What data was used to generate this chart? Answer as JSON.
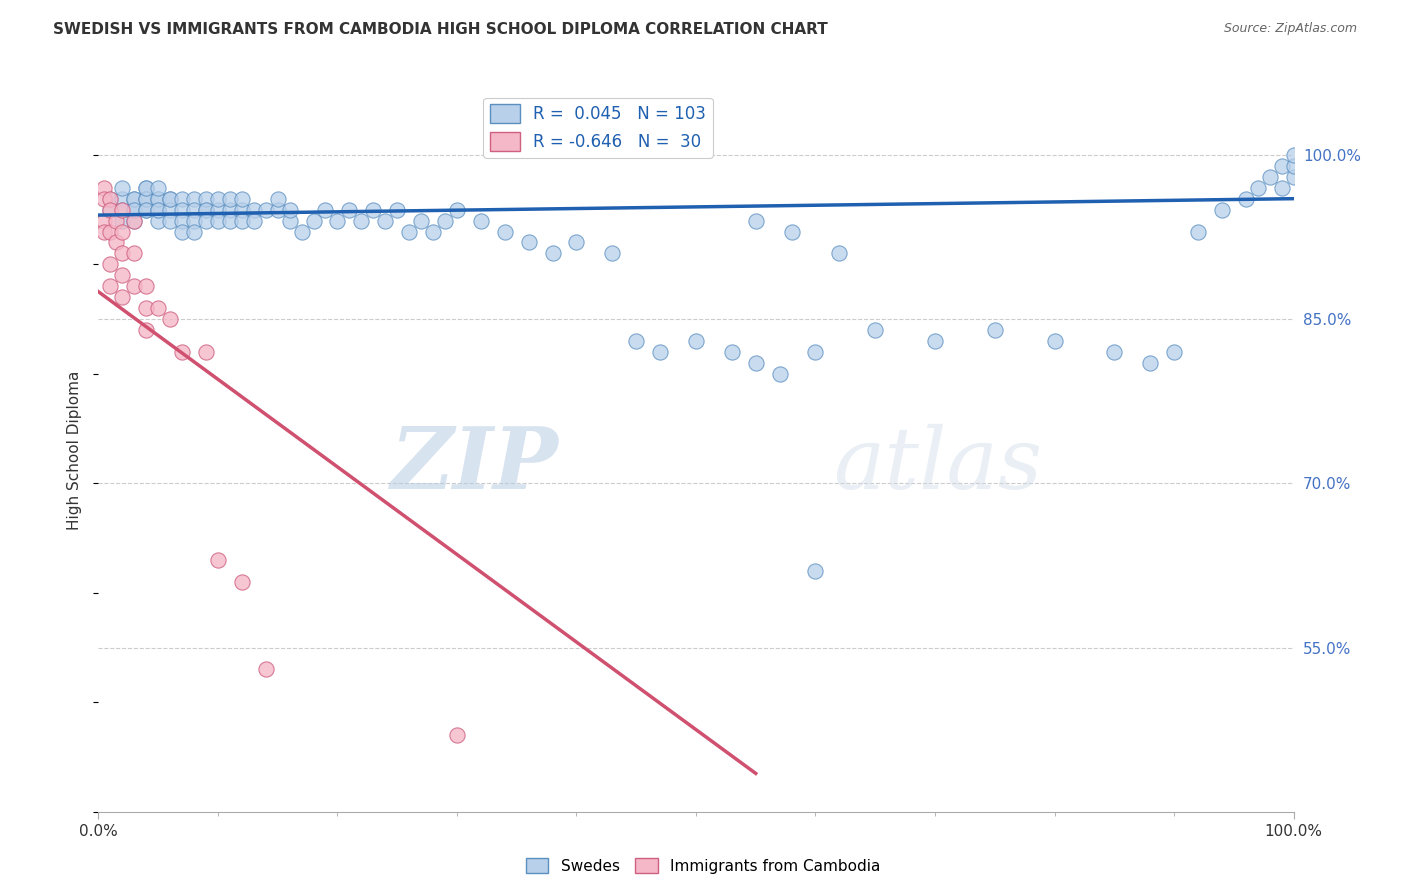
{
  "title": "SWEDISH VS IMMIGRANTS FROM CAMBODIA HIGH SCHOOL DIPLOMA CORRELATION CHART",
  "source": "Source: ZipAtlas.com",
  "ylabel": "High School Diploma",
  "xlim": [
    0.0,
    1.0
  ],
  "ylim": [
    0.4,
    1.06
  ],
  "right_yticks": [
    1.0,
    0.85,
    0.7,
    0.55
  ],
  "right_yticklabels": [
    "100.0%",
    "85.0%",
    "70.0%",
    "55.0%"
  ],
  "blue_R": 0.045,
  "blue_N": 103,
  "pink_R": -0.646,
  "pink_N": 30,
  "blue_color": "#b8d0ea",
  "pink_color": "#f5b8c8",
  "blue_edge_color": "#5a8fc0",
  "pink_edge_color": "#d06080",
  "blue_line_color": "#2060b0",
  "pink_line_color": "#d05070",
  "watermark_zip": "ZIP",
  "watermark_atlas": "atlas",
  "legend_swedes": "Swedes",
  "legend_cambodia": "Immigrants from Cambodia",
  "blue_scatter_x": [
    0.01,
    0.01,
    0.02,
    0.02,
    0.02,
    0.02,
    0.03,
    0.03,
    0.03,
    0.03,
    0.03,
    0.04,
    0.04,
    0.04,
    0.04,
    0.04,
    0.04,
    0.05,
    0.05,
    0.05,
    0.05,
    0.05,
    0.05,
    0.06,
    0.06,
    0.06,
    0.06,
    0.07,
    0.07,
    0.07,
    0.07,
    0.08,
    0.08,
    0.08,
    0.08,
    0.09,
    0.09,
    0.09,
    0.09,
    0.1,
    0.1,
    0.1,
    0.11,
    0.11,
    0.11,
    0.12,
    0.12,
    0.12,
    0.13,
    0.13,
    0.14,
    0.15,
    0.15,
    0.16,
    0.16,
    0.17,
    0.18,
    0.19,
    0.2,
    0.21,
    0.22,
    0.23,
    0.24,
    0.25,
    0.26,
    0.27,
    0.28,
    0.29,
    0.3,
    0.32,
    0.34,
    0.36,
    0.38,
    0.4,
    0.43,
    0.45,
    0.47,
    0.5,
    0.53,
    0.55,
    0.57,
    0.6,
    0.65,
    0.7,
    0.75,
    0.8,
    0.85,
    0.88,
    0.9,
    0.92,
    0.94,
    0.96,
    0.97,
    0.98,
    0.99,
    0.99,
    1.0,
    1.0,
    1.0,
    0.62,
    0.55,
    0.58,
    0.6
  ],
  "blue_scatter_y": [
    0.95,
    0.96,
    0.96,
    0.95,
    0.94,
    0.97,
    0.96,
    0.95,
    0.94,
    0.96,
    0.95,
    0.97,
    0.96,
    0.95,
    0.96,
    0.97,
    0.95,
    0.96,
    0.95,
    0.94,
    0.96,
    0.95,
    0.97,
    0.96,
    0.95,
    0.94,
    0.96,
    0.96,
    0.95,
    0.94,
    0.93,
    0.96,
    0.95,
    0.94,
    0.93,
    0.95,
    0.96,
    0.95,
    0.94,
    0.95,
    0.96,
    0.94,
    0.95,
    0.96,
    0.94,
    0.95,
    0.96,
    0.94,
    0.95,
    0.94,
    0.95,
    0.95,
    0.96,
    0.94,
    0.95,
    0.93,
    0.94,
    0.95,
    0.94,
    0.95,
    0.94,
    0.95,
    0.94,
    0.95,
    0.93,
    0.94,
    0.93,
    0.94,
    0.95,
    0.94,
    0.93,
    0.92,
    0.91,
    0.92,
    0.91,
    0.83,
    0.82,
    0.83,
    0.82,
    0.81,
    0.8,
    0.82,
    0.84,
    0.83,
    0.84,
    0.83,
    0.82,
    0.81,
    0.82,
    0.93,
    0.95,
    0.96,
    0.97,
    0.98,
    0.97,
    0.99,
    0.98,
    0.99,
    1.0,
    0.91,
    0.94,
    0.93,
    0.62
  ],
  "pink_scatter_x": [
    0.005,
    0.005,
    0.005,
    0.005,
    0.01,
    0.01,
    0.01,
    0.01,
    0.01,
    0.015,
    0.015,
    0.02,
    0.02,
    0.02,
    0.02,
    0.02,
    0.03,
    0.03,
    0.03,
    0.04,
    0.04,
    0.04,
    0.05,
    0.06,
    0.07,
    0.09,
    0.1,
    0.12,
    0.14,
    0.3
  ],
  "pink_scatter_y": [
    0.97,
    0.96,
    0.94,
    0.93,
    0.96,
    0.95,
    0.93,
    0.9,
    0.88,
    0.94,
    0.92,
    0.95,
    0.93,
    0.91,
    0.89,
    0.87,
    0.94,
    0.91,
    0.88,
    0.88,
    0.86,
    0.84,
    0.86,
    0.85,
    0.82,
    0.82,
    0.63,
    0.61,
    0.53,
    0.47
  ],
  "blue_line_x": [
    0.0,
    1.0
  ],
  "blue_line_y": [
    0.945,
    0.96
  ],
  "pink_line_x": [
    0.0,
    0.55
  ],
  "pink_line_y": [
    0.875,
    0.435
  ]
}
